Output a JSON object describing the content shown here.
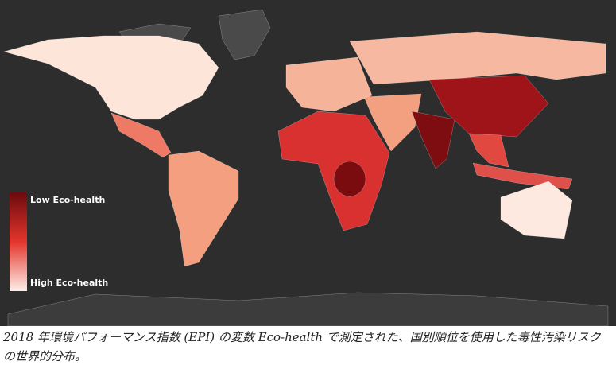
{
  "legend": {
    "low_label": "Low Eco-health",
    "high_label": "High Eco-health"
  },
  "caption": "2018 年環境パフォーマンス指数 (EPI) の変数 Eco-health で測定された、国別順位を使用した毒性汚染リスクの世界的分布。"
}
